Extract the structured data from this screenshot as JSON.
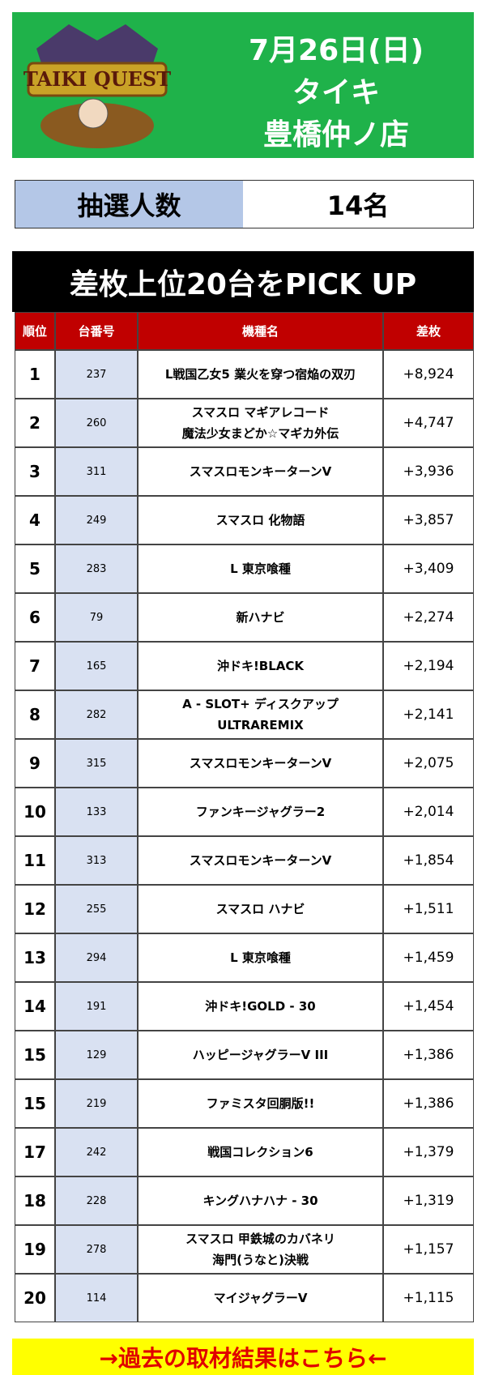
{
  "header": {
    "logo_text": "TAIKI QUEST",
    "date": "7月26日(日)",
    "brand": "タイキ",
    "store": "豊橋仲ノ店"
  },
  "lottery": {
    "label": "抽選人数",
    "value": "14名"
  },
  "table": {
    "title": "差枚上位20台をPICK UP",
    "columns": [
      "順位",
      "台番号",
      "機種名",
      "差枚"
    ],
    "rows": [
      [
        "1",
        "237",
        [
          "L戦国乙女5 業火を穿つ宿焔の双刃"
        ],
        "+8,924"
      ],
      [
        "2",
        "260",
        [
          "スマスロ マギアレコード",
          "魔法少女まどか☆マギカ外伝"
        ],
        "+4,747"
      ],
      [
        "3",
        "311",
        [
          "スマスロモンキーターンV"
        ],
        "+3,936"
      ],
      [
        "4",
        "249",
        [
          "スマスロ 化物語"
        ],
        "+3,857"
      ],
      [
        "5",
        "283",
        [
          "L 東京喰種"
        ],
        "+3,409"
      ],
      [
        "6",
        "79",
        [
          "新ハナビ"
        ],
        "+2,274"
      ],
      [
        "7",
        "165",
        [
          "沖ドキ!BLACK"
        ],
        "+2,194"
      ],
      [
        "8",
        "282",
        [
          "A - SLOT+ ディスクアップ",
          "ULTRAREMIX"
        ],
        "+2,141"
      ],
      [
        "9",
        "315",
        [
          "スマスロモンキーターンV"
        ],
        "+2,075"
      ],
      [
        "10",
        "133",
        [
          "ファンキージャグラー2"
        ],
        "+2,014"
      ],
      [
        "11",
        "313",
        [
          "スマスロモンキーターンV"
        ],
        "+1,854"
      ],
      [
        "12",
        "255",
        [
          "スマスロ ハナビ"
        ],
        "+1,511"
      ],
      [
        "13",
        "294",
        [
          "L 東京喰種"
        ],
        "+1,459"
      ],
      [
        "14",
        "191",
        [
          "沖ドキ!GOLD - 30"
        ],
        "+1,454"
      ],
      [
        "15",
        "129",
        [
          "ハッピージャグラーV III"
        ],
        "+1,386"
      ],
      [
        "15",
        "219",
        [
          "ファミスタ回胴版!!"
        ],
        "+1,386"
      ],
      [
        "17",
        "242",
        [
          "戦国コレクション6"
        ],
        "+1,379"
      ],
      [
        "18",
        "228",
        [
          "キングハナハナ - 30"
        ],
        "+1,319"
      ],
      [
        "19",
        "278",
        [
          "スマスロ 甲鉄城のカバネリ",
          "海門(うなと)決戦"
        ],
        "+1,157"
      ],
      [
        "20",
        "114",
        [
          "マイジャグラーV"
        ],
        "+1,115"
      ]
    ]
  },
  "footer": {
    "link": "→過去の取材結果はこちら←"
  }
}
